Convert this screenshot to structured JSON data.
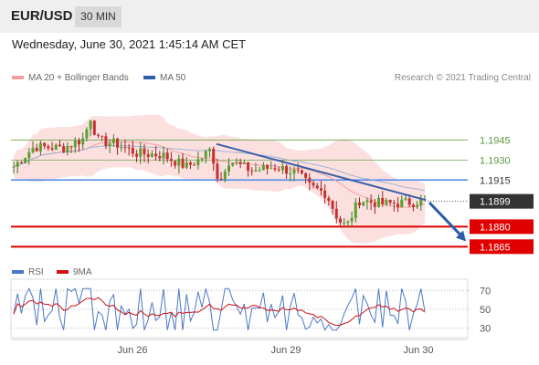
{
  "header": {
    "pair": "EUR/USD",
    "timeframe": "30 MIN"
  },
  "datetime": "Wednesday, June 30, 2021 1:45:14 AM CET",
  "legend": {
    "ma20": {
      "label": "MA 20 + Bollinger Bands",
      "color": "#f08080"
    },
    "ma50": {
      "label": "MA 50",
      "color": "#2b5ea7"
    }
  },
  "credit": "Research © 2021 Trading Central",
  "rsi_legend": {
    "rsi": {
      "label": "RSI",
      "color": "#4a78c8"
    },
    "ma9": {
      "label": "9MA",
      "color": "#d01010"
    }
  },
  "chart_data": {
    "type": "candlestick",
    "symbol": "EUR/USD",
    "timeframe": "30 MIN",
    "ylim": [
      1.1857,
      1.1985
    ],
    "x_ticks": [
      "Jun 26",
      "Jun 29",
      "Jun 30"
    ],
    "levels": [
      {
        "value": 1.1945,
        "label": "1.1945",
        "kind": "target",
        "color": "#6aa84f"
      },
      {
        "value": 1.193,
        "label": "1.1930",
        "kind": "target",
        "color": "#6aa84f"
      },
      {
        "value": 1.1915,
        "label": "1.1915",
        "kind": "pivot",
        "color": "#4a86e8"
      },
      {
        "value": 1.1899,
        "label": "1.1899",
        "kind": "last",
        "color": "#333333"
      },
      {
        "value": 1.188,
        "label": "1.1880",
        "kind": "support",
        "color": "#e00000"
      },
      {
        "value": 1.1865,
        "label": "1.1865",
        "kind": "support",
        "color": "#e00000"
      }
    ],
    "trendline": [
      [
        0.0,
        1.1942
      ],
      [
        1.0,
        1.19
      ]
    ],
    "arrow": {
      "from": 1.1898,
      "to": 1.1869,
      "color": "#2b5ea7"
    },
    "rsi": {
      "ylim": [
        20,
        80
      ],
      "ticks": [
        70,
        50,
        30
      ],
      "last_rsi": 48,
      "last_ma9": 47
    }
  }
}
